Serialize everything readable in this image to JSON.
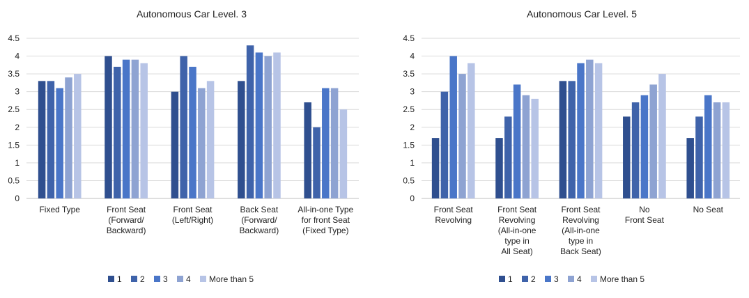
{
  "colors": [
    "#2f4f8f",
    "#3f63aa",
    "#4a76c8",
    "#8ea3d2",
    "#b7c4e6"
  ],
  "chart_data": [
    {
      "type": "bar",
      "title": "Autonomous Car Level. 3",
      "ylim": [
        0,
        4.5
      ],
      "yticks": [
        "0",
        "0.5",
        "1",
        "1.5",
        "2",
        "2.5",
        "3",
        "3.5",
        "4",
        "4.5"
      ],
      "grid": true,
      "legend_position": "bottom",
      "categories": [
        [
          "Fixed Type"
        ],
        [
          "Front Seat",
          "(Forward/",
          "Backward)"
        ],
        [
          "Front Seat",
          "(Left/Right)"
        ],
        [
          "Back Seat",
          "(Forward/",
          "Backward)"
        ],
        [
          "All-in-one Type",
          "for front Seat",
          "(Fixed Type)"
        ]
      ],
      "series": [
        {
          "name": "1",
          "values": [
            3.3,
            4.0,
            3.0,
            3.3,
            2.7
          ]
        },
        {
          "name": "2",
          "values": [
            3.3,
            3.7,
            4.0,
            4.3,
            2.0
          ]
        },
        {
          "name": "3",
          "values": [
            3.1,
            3.9,
            3.7,
            4.1,
            3.1
          ]
        },
        {
          "name": "4",
          "values": [
            3.4,
            3.9,
            3.1,
            4.0,
            3.1
          ]
        },
        {
          "name": "More than 5",
          "values": [
            3.5,
            3.8,
            3.3,
            4.1,
            2.5
          ]
        }
      ]
    },
    {
      "type": "bar",
      "title": "Autonomous Car Level. 5",
      "ylim": [
        0,
        4.5
      ],
      "yticks": [
        "0",
        "0.5",
        "1",
        "1.5",
        "2",
        "2.5",
        "3",
        "3.5",
        "4",
        "4.5"
      ],
      "grid": true,
      "legend_position": "bottom",
      "categories": [
        [
          "Front Seat",
          "Revolving"
        ],
        [
          "Front Seat",
          "Revolving",
          "(All-in-one",
          "type in",
          "All Seat)"
        ],
        [
          "Front Seat",
          "Revolving",
          "(All-in-one",
          "type in",
          "Back Seat)"
        ],
        [
          "No",
          "Front Seat"
        ],
        [
          "No Seat"
        ]
      ],
      "series": [
        {
          "name": "1",
          "values": [
            1.7,
            1.7,
            3.3,
            2.3,
            1.7
          ]
        },
        {
          "name": "2",
          "values": [
            3.0,
            2.3,
            3.3,
            2.7,
            2.3
          ]
        },
        {
          "name": "3",
          "values": [
            4.0,
            3.2,
            3.8,
            2.9,
            2.9
          ]
        },
        {
          "name": "4",
          "values": [
            3.5,
            2.9,
            3.9,
            3.2,
            2.7
          ]
        },
        {
          "name": "More than 5",
          "values": [
            3.8,
            2.8,
            3.8,
            3.5,
            2.7
          ]
        }
      ]
    }
  ]
}
